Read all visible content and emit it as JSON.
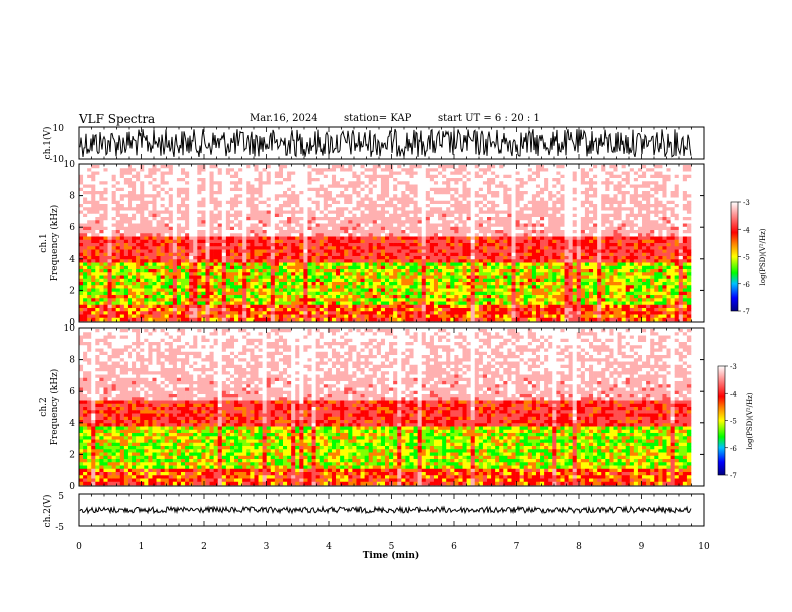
{
  "header": {
    "title": "VLF Spectra",
    "date": "Mar.16, 2024",
    "station": "station= KAP",
    "start": "start  UT =   6  : 20 : 1"
  },
  "chart_data": {
    "type": "heatmap",
    "xlabel": "Time  (min)",
    "xlim": [
      0,
      10
    ],
    "xticks": [
      "0",
      "1",
      "2",
      "3",
      "4",
      "5",
      "6",
      "7",
      "8",
      "9",
      "10"
    ],
    "panels": {
      "ch1v": {
        "ylabel": "ch.1(V)",
        "ylim": [
          -10,
          10
        ],
        "yticks": [
          "10",
          "-10"
        ]
      },
      "spec1": {
        "ylabel1": "ch.1",
        "ylabel2": "Frequency  (kHz)",
        "ylim": [
          0,
          10
        ],
        "yticks": [
          "0",
          "2",
          "4",
          "6",
          "8",
          "10"
        ]
      },
      "spec2": {
        "ylabel1": "ch.2",
        "ylabel2": "Frequency  (kHz)",
        "ylim": [
          0,
          10
        ],
        "yticks": [
          "0",
          "2",
          "4",
          "6",
          "8",
          "10"
        ]
      },
      "ch2v": {
        "ylabel": "ch.2(V)",
        "ylim": [
          -5,
          5
        ],
        "yticks": [
          "5",
          "-5"
        ]
      }
    },
    "colorbar": {
      "label": "log(PSD)(V²/Hz)",
      "range": [
        -7,
        -3
      ],
      "ticks": [
        "-3",
        "-4",
        "-5",
        "-6",
        "-7"
      ],
      "colors": [
        "#000080",
        "#0000ff",
        "#00c0ff",
        "#00ff00",
        "#ffff00",
        "#ff8000",
        "#ff0000",
        "#ffffff"
      ]
    }
  }
}
